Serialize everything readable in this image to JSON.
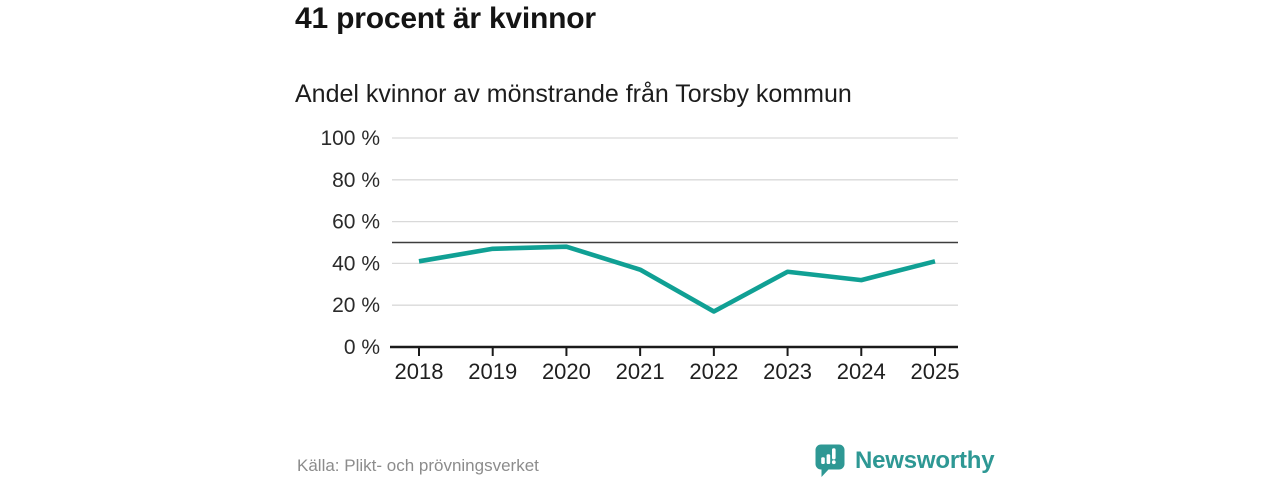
{
  "header": {
    "title": "41 procent är kvinnor"
  },
  "chart_data": {
    "type": "line",
    "title": "Andel kvinnor av mönstrande från Torsby kommun",
    "categories": [
      "2018",
      "2019",
      "2020",
      "2021",
      "2022",
      "2023",
      "2024",
      "2025"
    ],
    "series": [
      {
        "name": "Andel kvinnor av mönstrande",
        "values": [
          41,
          47,
          48,
          37,
          17,
          36,
          32,
          41
        ]
      }
    ],
    "unit": "%",
    "ylim": [
      0,
      100
    ],
    "yticks": [
      0,
      20,
      40,
      60,
      80,
      100
    ],
    "ytick_labels": [
      "0 %",
      "20 %",
      "40 %",
      "60 %",
      "80 %",
      "100 %"
    ],
    "reference_line": 50,
    "grid": true,
    "legend_position": "none",
    "line_color": "#10A094"
  },
  "colors": {
    "accent_teal": "#10A094",
    "brand_teal": "#2E9894",
    "grid_gray": "#D9D9D9",
    "axis_dark": "#1A1A1A",
    "reference_dark": "#3D3D3D",
    "ylabel_color": "#2B2B2B",
    "xlabel_color": "#1F1F1F"
  },
  "footer": {
    "source": "Källa: Plikt- och prövningsverket",
    "brand": "Newsworthy"
  }
}
